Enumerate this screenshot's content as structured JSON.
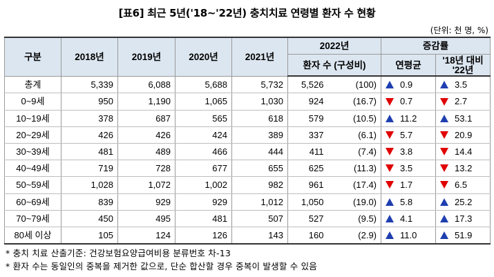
{
  "title": "[표6] 최근 5년('18~'22년) 충치치료 연령별 환자 수 현황",
  "unit": "(단위: 천 명, %)",
  "headers": {
    "category": "구분",
    "y2018": "2018년",
    "y2019": "2019년",
    "y2020": "2020년",
    "y2021": "2021년",
    "y2022": "2022년",
    "patients": "환자 수 (구성비)",
    "change": "증감률",
    "annual": "연평균",
    "vs18_line1": "'18년 대비",
    "vs18_line2": "'22년"
  },
  "rows": [
    {
      "cat": "총계",
      "y2018": "5,339",
      "y2019": "6,088",
      "y2020": "5,688",
      "y2021": "5,732",
      "y2022": "5,526",
      "ratio": "(100)",
      "annual": "0.9",
      "annual_dir": "up",
      "vs18": "3.5",
      "vs18_dir": "up"
    },
    {
      "cat": "0~9세",
      "y2018": "950",
      "y2019": "1,190",
      "y2020": "1,065",
      "y2021": "1,030",
      "y2022": "924",
      "ratio": "(16.7)",
      "annual": "0.7",
      "annual_dir": "down",
      "vs18": "2.7",
      "vs18_dir": "down"
    },
    {
      "cat": "10~19세",
      "y2018": "378",
      "y2019": "687",
      "y2020": "565",
      "y2021": "618",
      "y2022": "579",
      "ratio": "(10.5)",
      "annual": "11.2",
      "annual_dir": "up",
      "vs18": "53.1",
      "vs18_dir": "up"
    },
    {
      "cat": "20~29세",
      "y2018": "426",
      "y2019": "426",
      "y2020": "424",
      "y2021": "389",
      "y2022": "337",
      "ratio": "(6.1)",
      "annual": "5.7",
      "annual_dir": "down",
      "vs18": "20.9",
      "vs18_dir": "down"
    },
    {
      "cat": "30~39세",
      "y2018": "481",
      "y2019": "489",
      "y2020": "466",
      "y2021": "444",
      "y2022": "411",
      "ratio": "(7.4)",
      "annual": "3.8",
      "annual_dir": "down",
      "vs18": "14.4",
      "vs18_dir": "down"
    },
    {
      "cat": "40~49세",
      "y2018": "719",
      "y2019": "728",
      "y2020": "677",
      "y2021": "655",
      "y2022": "625",
      "ratio": "(11.3)",
      "annual": "3.5",
      "annual_dir": "down",
      "vs18": "13.2",
      "vs18_dir": "down"
    },
    {
      "cat": "50~59세",
      "y2018": "1,028",
      "y2019": "1,072",
      "y2020": "1,002",
      "y2021": "982",
      "y2022": "961",
      "ratio": "(17.4)",
      "annual": "1.7",
      "annual_dir": "down",
      "vs18": "6.5",
      "vs18_dir": "down"
    },
    {
      "cat": "60~69세",
      "y2018": "839",
      "y2019": "929",
      "y2020": "929",
      "y2021": "1,012",
      "y2022": "1,050",
      "ratio": "(19.0)",
      "annual": "5.8",
      "annual_dir": "up",
      "vs18": "25.2",
      "vs18_dir": "up"
    },
    {
      "cat": "70~79세",
      "y2018": "450",
      "y2019": "495",
      "y2020": "481",
      "y2021": "507",
      "y2022": "527",
      "ratio": "(9.5)",
      "annual": "4.1",
      "annual_dir": "up",
      "vs18": "17.3",
      "vs18_dir": "up"
    },
    {
      "cat": "80세 이상",
      "y2018": "105",
      "y2019": "124",
      "y2020": "126",
      "y2021": "143",
      "y2022": "160",
      "ratio": "(2.9)",
      "annual": "11.0",
      "annual_dir": "up",
      "vs18": "51.9",
      "vs18_dir": "up"
    }
  ],
  "footnotes": [
    "* 충치 치료 산출기준: 건강보험요양급여비용 분류번호 차-13",
    "* 환자 수는 동일인의 중복을 제거한 값으로, 단순 합산할 경우 중복이 발생할 수 있음"
  ],
  "colors": {
    "header_bg": "#dce6f0",
    "increase": "#1f3fb0",
    "decrease": "#e00000"
  }
}
